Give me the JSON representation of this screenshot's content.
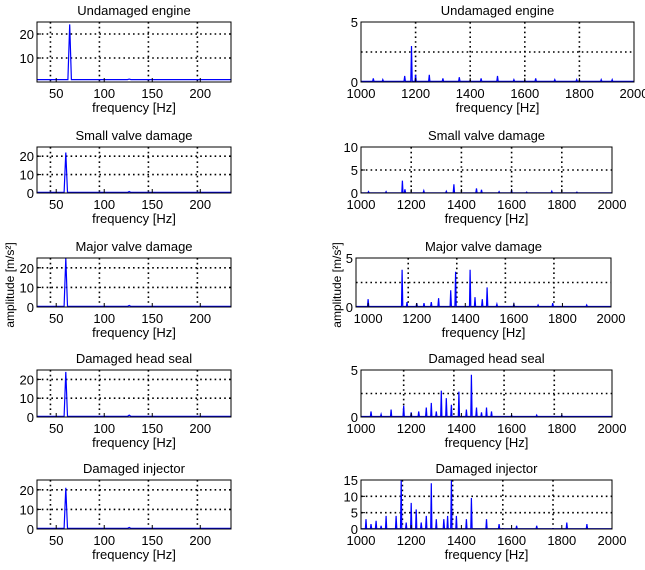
{
  "figure": {
    "ylabel": "amplitude [m/s²]",
    "colors": {
      "line": "#0000ff",
      "axes": "#000000",
      "grid": "#000000",
      "background": "#ffffff"
    }
  },
  "chart_data": [
    {
      "type": "line",
      "title": "Undamaged engine",
      "xlabel": "frequency [Hz]",
      "xlim": [
        30,
        232
      ],
      "ylim": [
        0,
        25
      ],
      "xticks": [
        50,
        100,
        150,
        200
      ],
      "yticks": [
        10,
        20
      ],
      "xgrid": [
        44,
        95,
        146,
        197
      ],
      "ygrid": [
        10,
        20
      ],
      "grid": true,
      "baseline": 1,
      "peaks": [
        [
          64,
          24
        ],
        [
          126,
          1.2
        ]
      ],
      "peak_width": 1.8
    },
    {
      "type": "line",
      "title": "Undamaged engine",
      "xlabel": "frequency [Hz]",
      "xlim": [
        1000,
        2000
      ],
      "ylim": [
        0,
        5
      ],
      "xticks": [
        1000,
        1200,
        1400,
        1600,
        1800,
        2000
      ],
      "yticks": [
        0,
        5
      ],
      "xgrid": [
        1200,
        1400,
        1600,
        1800
      ],
      "ygrid": [
        2.5
      ],
      "grid": true,
      "baseline": 0.05,
      "peaks": [
        [
          1045,
          0.3
        ],
        [
          1080,
          0.2
        ],
        [
          1160,
          0.5
        ],
        [
          1185,
          3.0
        ],
        [
          1200,
          0.6
        ],
        [
          1250,
          0.6
        ],
        [
          1300,
          0.3
        ],
        [
          1360,
          0.4
        ],
        [
          1440,
          0.3
        ],
        [
          1500,
          0.5
        ],
        [
          1560,
          0.2
        ],
        [
          1640,
          0.3
        ],
        [
          1710,
          0.2
        ],
        [
          1790,
          0.2
        ],
        [
          1880,
          0.2
        ],
        [
          1920,
          0.2
        ]
      ]
    },
    {
      "type": "line",
      "title": "Small valve damage",
      "xlabel": "frequency [Hz]",
      "xlim": [
        30,
        232
      ],
      "ylim": [
        0,
        25
      ],
      "xticks": [
        50,
        100,
        150,
        200
      ],
      "yticks": [
        0,
        10,
        20
      ],
      "xgrid": [
        44,
        95,
        146,
        197
      ],
      "ygrid": [
        10,
        20
      ],
      "grid": true,
      "baseline": 0.3,
      "peaks": [
        [
          60,
          22
        ],
        [
          126,
          0.8
        ]
      ],
      "peak_width": 1.8
    },
    {
      "type": "line",
      "title": "Small valve damage",
      "xlabel": "frequency [Hz]",
      "xlim": [
        1000,
        2000
      ],
      "ylim": [
        0,
        10
      ],
      "xticks": [
        1000,
        1200,
        1400,
        1600,
        1800,
        2000
      ],
      "yticks": [
        0,
        5,
        10
      ],
      "xgrid": [
        1200,
        1400,
        1600,
        1800
      ],
      "ygrid": [
        5
      ],
      "grid": true,
      "baseline": 0.05,
      "peaks": [
        [
          1030,
          0.3
        ],
        [
          1100,
          0.3
        ],
        [
          1165,
          2.7
        ],
        [
          1175,
          0.8
        ],
        [
          1250,
          0.5
        ],
        [
          1340,
          0.4
        ],
        [
          1370,
          1.9
        ],
        [
          1460,
          1.0
        ],
        [
          1480,
          0.7
        ],
        [
          1550,
          0.3
        ],
        [
          1600,
          0.5
        ],
        [
          1660,
          0.2
        ],
        [
          1760,
          0.4
        ],
        [
          1860,
          0.2
        ]
      ]
    },
    {
      "type": "line",
      "title": "Major valve damage",
      "xlabel": "frequency [Hz]",
      "xlim": [
        30,
        232
      ],
      "ylim": [
        0,
        25
      ],
      "xticks": [
        50,
        100,
        150,
        200
      ],
      "yticks": [
        0,
        10,
        20
      ],
      "xgrid": [
        44,
        95,
        146,
        197
      ],
      "ygrid": [
        10,
        20
      ],
      "grid": true,
      "baseline": 0.3,
      "peaks": [
        [
          60,
          25
        ],
        [
          126,
          0.8
        ]
      ],
      "peak_width": 1.8
    },
    {
      "type": "line",
      "title": "Major valve damage",
      "xlabel": "frequency [Hz]",
      "xlim": [
        950,
        2000
      ],
      "ylim": [
        0,
        5
      ],
      "xticks": [
        1000,
        1200,
        1400,
        1600,
        1800,
        2000
      ],
      "yticks": [
        0,
        5
      ],
      "xgrid": [
        1165,
        1365,
        1565,
        1765
      ],
      "ygrid": [
        2.5
      ],
      "grid": true,
      "baseline": 0.05,
      "peaks": [
        [
          1000,
          0.8
        ],
        [
          1140,
          3.8
        ],
        [
          1160,
          0.5
        ],
        [
          1200,
          0.4
        ],
        [
          1230,
          0.4
        ],
        [
          1260,
          0.5
        ],
        [
          1290,
          0.9
        ],
        [
          1340,
          1.7
        ],
        [
          1360,
          3.6
        ],
        [
          1420,
          3.8
        ],
        [
          1440,
          1.0
        ],
        [
          1470,
          0.8
        ],
        [
          1490,
          2.0
        ],
        [
          1530,
          0.3
        ],
        [
          1600,
          0.3
        ],
        [
          1700,
          0.2
        ],
        [
          1760,
          0.4
        ],
        [
          1900,
          0.2
        ]
      ]
    },
    {
      "type": "line",
      "title": "Damaged head seal",
      "xlabel": "frequency [Hz]",
      "xlim": [
        30,
        232
      ],
      "ylim": [
        0,
        25
      ],
      "xticks": [
        50,
        100,
        150,
        200
      ],
      "yticks": [
        0,
        10,
        20
      ],
      "xgrid": [
        44,
        95,
        146,
        197
      ],
      "ygrid": [
        10,
        20
      ],
      "grid": true,
      "baseline": 0.3,
      "peaks": [
        [
          60,
          24
        ],
        [
          126,
          1.0
        ]
      ],
      "peak_width": 1.8
    },
    {
      "type": "line",
      "title": "Damaged head seal",
      "xlabel": "frequency [Hz]",
      "xlim": [
        1000,
        2000
      ],
      "ylim": [
        0,
        5
      ],
      "xticks": [
        1000,
        1200,
        1400,
        1600,
        1800,
        2000
      ],
      "yticks": [
        0,
        5
      ],
      "xgrid": [
        1170,
        1370,
        1570,
        1770
      ],
      "ygrid": [
        2.5
      ],
      "grid": true,
      "baseline": 0.05,
      "peaks": [
        [
          1040,
          0.6
        ],
        [
          1080,
          0.3
        ],
        [
          1120,
          0.8
        ],
        [
          1170,
          1.2
        ],
        [
          1200,
          0.5
        ],
        [
          1230,
          0.6
        ],
        [
          1260,
          1.0
        ],
        [
          1280,
          1.5
        ],
        [
          1300,
          0.6
        ],
        [
          1320,
          2.8
        ],
        [
          1340,
          2.0
        ],
        [
          1360,
          1.3
        ],
        [
          1390,
          2.7
        ],
        [
          1420,
          0.8
        ],
        [
          1440,
          4.5
        ],
        [
          1460,
          1.0
        ],
        [
          1480,
          0.5
        ],
        [
          1500,
          1.0
        ],
        [
          1520,
          0.6
        ],
        [
          1600,
          0.2
        ],
        [
          1700,
          0.2
        ],
        [
          1800,
          0.2
        ]
      ]
    },
    {
      "type": "line",
      "title": "Damaged injector",
      "xlabel": "frequency [Hz]",
      "xlim": [
        30,
        232
      ],
      "ylim": [
        0,
        25
      ],
      "xticks": [
        50,
        100,
        150,
        200
      ],
      "yticks": [
        0,
        10,
        20
      ],
      "xgrid": [
        44,
        95,
        146,
        197
      ],
      "ygrid": [
        10,
        20
      ],
      "grid": true,
      "baseline": 0.3,
      "peaks": [
        [
          60,
          21
        ],
        [
          126,
          0.8
        ]
      ],
      "peak_width": 1.8
    },
    {
      "type": "line",
      "title": "Damaged injector",
      "xlabel": "frequency [Hz]",
      "xlim": [
        1000,
        2000
      ],
      "ylim": [
        0,
        15
      ],
      "xticks": [
        1000,
        1200,
        1400,
        1600,
        1800,
        2000
      ],
      "yticks": [
        0,
        5,
        10,
        15
      ],
      "xgrid": [
        1165,
        1365,
        1565,
        1765
      ],
      "ygrid": [
        5,
        10
      ],
      "grid": true,
      "baseline": 0.1,
      "peaks": [
        [
          1020,
          3.0
        ],
        [
          1040,
          1.5
        ],
        [
          1060,
          2.5
        ],
        [
          1080,
          1.0
        ],
        [
          1100,
          4.0
        ],
        [
          1140,
          4.0
        ],
        [
          1160,
          15.0
        ],
        [
          1180,
          2.0
        ],
        [
          1200,
          8.0
        ],
        [
          1220,
          6.0
        ],
        [
          1240,
          2.0
        ],
        [
          1260,
          4.0
        ],
        [
          1280,
          14.0
        ],
        [
          1300,
          3.0
        ],
        [
          1330,
          3.0
        ],
        [
          1345,
          4.0
        ],
        [
          1360,
          15.0
        ],
        [
          1380,
          4.0
        ],
        [
          1420,
          3.0
        ],
        [
          1440,
          9.5
        ],
        [
          1500,
          3.0
        ],
        [
          1550,
          1.5
        ],
        [
          1620,
          1.0
        ],
        [
          1700,
          1.0
        ],
        [
          1820,
          2.0
        ],
        [
          1900,
          1.5
        ]
      ]
    }
  ]
}
